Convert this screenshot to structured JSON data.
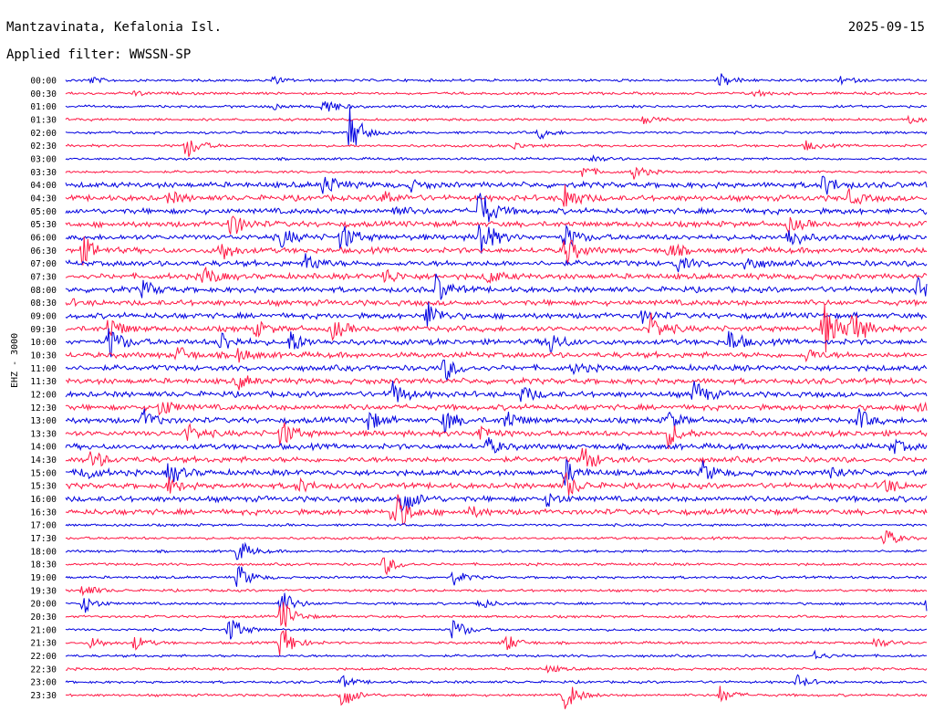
{
  "header": {
    "station": "Mantzavinata, Kefalonia Isl.",
    "date": "2025-09-15",
    "filter": "Applied filter: WWSSN-SP",
    "channel": "EHZ - 3000"
  },
  "colors": {
    "even_trace": "#0000e0",
    "odd_trace": "#ff1744"
  },
  "chart_data": {
    "type": "line",
    "title": "Mantzavinata, Kefalonia Isl.",
    "subtitle": "Applied filter: WWSSN-SP",
    "date": "2025-09-15",
    "ylabel": "EHZ - 3000",
    "rows": [
      "00:00",
      "00:30",
      "01:00",
      "01:30",
      "02:00",
      "02:30",
      "03:00",
      "03:30",
      "04:00",
      "04:30",
      "05:00",
      "05:30",
      "06:00",
      "06:30",
      "07:00",
      "07:30",
      "08:00",
      "08:30",
      "09:00",
      "09:30",
      "10:00",
      "10:30",
      "11:00",
      "11:30",
      "12:00",
      "12:30",
      "13:00",
      "13:30",
      "14:00",
      "14:30",
      "15:00",
      "15:30",
      "16:00",
      "16:30",
      "17:00",
      "17:30",
      "18:00",
      "18:30",
      "19:00",
      "19:30",
      "20:00",
      "20:30",
      "21:00",
      "21:30",
      "22:00",
      "22:30",
      "23:00",
      "23:30"
    ],
    "row_duration_min": 30,
    "alternating_colors": [
      "blue",
      "red"
    ],
    "events": [
      {
        "row": "00:00",
        "t": 0.03,
        "amp": 0.25
      },
      {
        "row": "00:00",
        "t": 0.24,
        "amp": 0.3
      },
      {
        "row": "00:00",
        "t": 0.76,
        "amp": 0.6
      },
      {
        "row": "00:00",
        "t": 0.9,
        "amp": 0.3
      },
      {
        "row": "00:30",
        "t": 0.08,
        "amp": 0.2
      },
      {
        "row": "00:30",
        "t": 0.8,
        "amp": 0.3
      },
      {
        "row": "01:00",
        "t": 0.24,
        "amp": 0.3
      },
      {
        "row": "01:00",
        "t": 0.3,
        "amp": 0.8
      },
      {
        "row": "01:30",
        "t": 0.67,
        "amp": 0.3
      },
      {
        "row": "01:30",
        "t": 0.98,
        "amp": 0.3
      },
      {
        "row": "02:00",
        "t": 0.33,
        "amp": 2.0
      },
      {
        "row": "02:00",
        "t": 0.55,
        "amp": 0.5
      },
      {
        "row": "02:30",
        "t": 0.14,
        "amp": 1.1
      },
      {
        "row": "02:30",
        "t": 0.52,
        "amp": 0.3
      },
      {
        "row": "02:30",
        "t": 0.86,
        "amp": 0.4
      },
      {
        "row": "03:00",
        "t": 0.61,
        "amp": 0.3
      },
      {
        "row": "03:30",
        "t": 0.6,
        "amp": 0.5
      },
      {
        "row": "03:30",
        "t": 0.66,
        "amp": 0.6
      },
      {
        "row": "04:00",
        "t": 0.3,
        "amp": 1.0
      },
      {
        "row": "04:00",
        "t": 0.4,
        "amp": 0.4
      },
      {
        "row": "04:00",
        "t": 0.88,
        "amp": 0.9
      },
      {
        "row": "04:30",
        "t": 0.12,
        "amp": 0.5
      },
      {
        "row": "04:30",
        "t": 0.37,
        "amp": 0.6
      },
      {
        "row": "04:30",
        "t": 0.58,
        "amp": 1.2
      },
      {
        "row": "04:30",
        "t": 0.91,
        "amp": 0.6
      },
      {
        "row": "05:00",
        "t": 0.48,
        "amp": 2.0
      },
      {
        "row": "05:00",
        "t": 0.38,
        "amp": 0.5
      },
      {
        "row": "05:30",
        "t": 0.19,
        "amp": 1.2
      },
      {
        "row": "05:30",
        "t": 0.84,
        "amp": 0.6
      },
      {
        "row": "06:00",
        "t": 0.25,
        "amp": 0.8
      },
      {
        "row": "06:00",
        "t": 0.32,
        "amp": 1.2
      },
      {
        "row": "06:00",
        "t": 0.48,
        "amp": 2.0
      },
      {
        "row": "06:00",
        "t": 0.58,
        "amp": 1.0
      },
      {
        "row": "06:00",
        "t": 0.84,
        "amp": 1.0
      },
      {
        "row": "06:30",
        "t": 0.02,
        "amp": 1.1
      },
      {
        "row": "06:30",
        "t": 0.18,
        "amp": 0.9
      },
      {
        "row": "06:30",
        "t": 0.58,
        "amp": 1.3
      },
      {
        "row": "06:30",
        "t": 0.7,
        "amp": 0.6
      },
      {
        "row": "07:00",
        "t": 0.28,
        "amp": 0.9
      },
      {
        "row": "07:00",
        "t": 0.71,
        "amp": 0.6
      },
      {
        "row": "07:00",
        "t": 0.79,
        "amp": 0.7
      },
      {
        "row": "07:30",
        "t": 0.16,
        "amp": 0.9
      },
      {
        "row": "07:30",
        "t": 0.37,
        "amp": 0.7
      },
      {
        "row": "07:30",
        "t": 0.49,
        "amp": 0.6
      },
      {
        "row": "08:00",
        "t": 0.09,
        "amp": 0.7
      },
      {
        "row": "08:00",
        "t": 0.43,
        "amp": 1.2
      },
      {
        "row": "08:00",
        "t": 0.99,
        "amp": 0.8
      },
      {
        "row": "08:30",
        "t": 0.0,
        "amp": 0.2
      },
      {
        "row": "09:00",
        "t": 0.42,
        "amp": 1.2
      },
      {
        "row": "09:00",
        "t": 0.67,
        "amp": 0.5
      },
      {
        "row": "09:30",
        "t": 0.05,
        "amp": 1.0
      },
      {
        "row": "09:30",
        "t": 0.22,
        "amp": 0.6
      },
      {
        "row": "09:30",
        "t": 0.31,
        "amp": 0.8
      },
      {
        "row": "09:30",
        "t": 0.68,
        "amp": 1.1
      },
      {
        "row": "09:30",
        "t": 0.88,
        "amp": 2.2
      },
      {
        "row": "09:30",
        "t": 0.91,
        "amp": 2.0
      },
      {
        "row": "10:00",
        "t": 0.05,
        "amp": 1.4
      },
      {
        "row": "10:00",
        "t": 0.18,
        "amp": 0.9
      },
      {
        "row": "10:00",
        "t": 0.26,
        "amp": 1.0
      },
      {
        "row": "10:00",
        "t": 0.56,
        "amp": 1.0
      },
      {
        "row": "10:00",
        "t": 0.77,
        "amp": 1.0
      },
      {
        "row": "10:30",
        "t": 0.13,
        "amp": 0.7
      },
      {
        "row": "10:30",
        "t": 0.2,
        "amp": 0.6
      },
      {
        "row": "10:30",
        "t": 0.86,
        "amp": 0.5
      },
      {
        "row": "11:00",
        "t": 0.44,
        "amp": 1.0
      },
      {
        "row": "11:00",
        "t": 0.59,
        "amp": 0.4
      },
      {
        "row": "11:30",
        "t": 0.2,
        "amp": 0.6
      },
      {
        "row": "12:00",
        "t": 0.38,
        "amp": 1.0
      },
      {
        "row": "12:00",
        "t": 0.53,
        "amp": 0.7
      },
      {
        "row": "12:00",
        "t": 0.73,
        "amp": 1.1
      },
      {
        "row": "12:30",
        "t": 0.11,
        "amp": 0.8
      },
      {
        "row": "12:30",
        "t": 0.99,
        "amp": 0.6
      },
      {
        "row": "13:00",
        "t": 0.09,
        "amp": 0.9
      },
      {
        "row": "13:00",
        "t": 0.35,
        "amp": 0.9
      },
      {
        "row": "13:00",
        "t": 0.44,
        "amp": 0.9
      },
      {
        "row": "13:00",
        "t": 0.51,
        "amp": 0.9
      },
      {
        "row": "13:00",
        "t": 0.7,
        "amp": 0.8
      },
      {
        "row": "13:00",
        "t": 0.92,
        "amp": 0.9
      },
      {
        "row": "13:30",
        "t": 0.14,
        "amp": 0.8
      },
      {
        "row": "13:30",
        "t": 0.25,
        "amp": 1.2
      },
      {
        "row": "13:30",
        "t": 0.48,
        "amp": 0.8
      },
      {
        "row": "13:30",
        "t": 0.7,
        "amp": 1.0
      },
      {
        "row": "14:00",
        "t": 0.49,
        "amp": 0.7
      },
      {
        "row": "14:00",
        "t": 0.96,
        "amp": 0.6
      },
      {
        "row": "14:30",
        "t": 0.03,
        "amp": 0.8
      },
      {
        "row": "14:30",
        "t": 0.6,
        "amp": 1.2
      },
      {
        "row": "15:00",
        "t": 0.02,
        "amp": 0.7
      },
      {
        "row": "15:00",
        "t": 0.12,
        "amp": 1.0
      },
      {
        "row": "15:00",
        "t": 0.58,
        "amp": 1.0
      },
      {
        "row": "15:00",
        "t": 0.74,
        "amp": 0.8
      },
      {
        "row": "15:00",
        "t": 0.89,
        "amp": 0.5
      },
      {
        "row": "15:30",
        "t": 0.12,
        "amp": 0.6
      },
      {
        "row": "15:30",
        "t": 0.27,
        "amp": 0.6
      },
      {
        "row": "15:30",
        "t": 0.58,
        "amp": 1.1
      },
      {
        "row": "15:30",
        "t": 0.95,
        "amp": 0.7
      },
      {
        "row": "16:00",
        "t": 0.39,
        "amp": 1.5
      },
      {
        "row": "16:00",
        "t": 0.56,
        "amp": 0.6
      },
      {
        "row": "16:30",
        "t": 0.38,
        "amp": 2.2
      },
      {
        "row": "16:30",
        "t": 0.47,
        "amp": 0.4
      },
      {
        "row": "17:30",
        "t": 0.95,
        "amp": 0.9
      },
      {
        "row": "18:00",
        "t": 0.2,
        "amp": 1.0
      },
      {
        "row": "18:30",
        "t": 0.37,
        "amp": 0.9
      },
      {
        "row": "19:00",
        "t": 0.2,
        "amp": 1.1
      },
      {
        "row": "19:00",
        "t": 0.45,
        "amp": 0.6
      },
      {
        "row": "19:30",
        "t": 0.02,
        "amp": 0.6
      },
      {
        "row": "20:00",
        "t": 0.02,
        "amp": 0.8
      },
      {
        "row": "20:00",
        "t": 0.25,
        "amp": 1.2
      },
      {
        "row": "20:00",
        "t": 0.48,
        "amp": 0.5
      },
      {
        "row": "20:00",
        "t": 1.0,
        "amp": 1.0
      },
      {
        "row": "20:30",
        "t": 0.25,
        "amp": 1.5
      },
      {
        "row": "21:00",
        "t": 0.19,
        "amp": 1.2
      },
      {
        "row": "21:00",
        "t": 0.45,
        "amp": 1.0
      },
      {
        "row": "21:30",
        "t": 0.03,
        "amp": 0.5
      },
      {
        "row": "21:30",
        "t": 0.08,
        "amp": 0.6
      },
      {
        "row": "21:30",
        "t": 0.25,
        "amp": 1.6
      },
      {
        "row": "21:30",
        "t": 0.51,
        "amp": 0.8
      },
      {
        "row": "21:30",
        "t": 0.94,
        "amp": 0.5
      },
      {
        "row": "22:00",
        "t": 0.87,
        "amp": 0.4
      },
      {
        "row": "22:30",
        "t": 0.56,
        "amp": 0.3
      },
      {
        "row": "23:00",
        "t": 0.32,
        "amp": 0.5
      },
      {
        "row": "23:00",
        "t": 0.85,
        "amp": 0.5
      },
      {
        "row": "23:30",
        "t": 0.32,
        "amp": 1.2
      },
      {
        "row": "23:30",
        "t": 0.58,
        "amp": 1.3
      },
      {
        "row": "23:30",
        "t": 0.76,
        "amp": 0.7
      }
    ]
  }
}
